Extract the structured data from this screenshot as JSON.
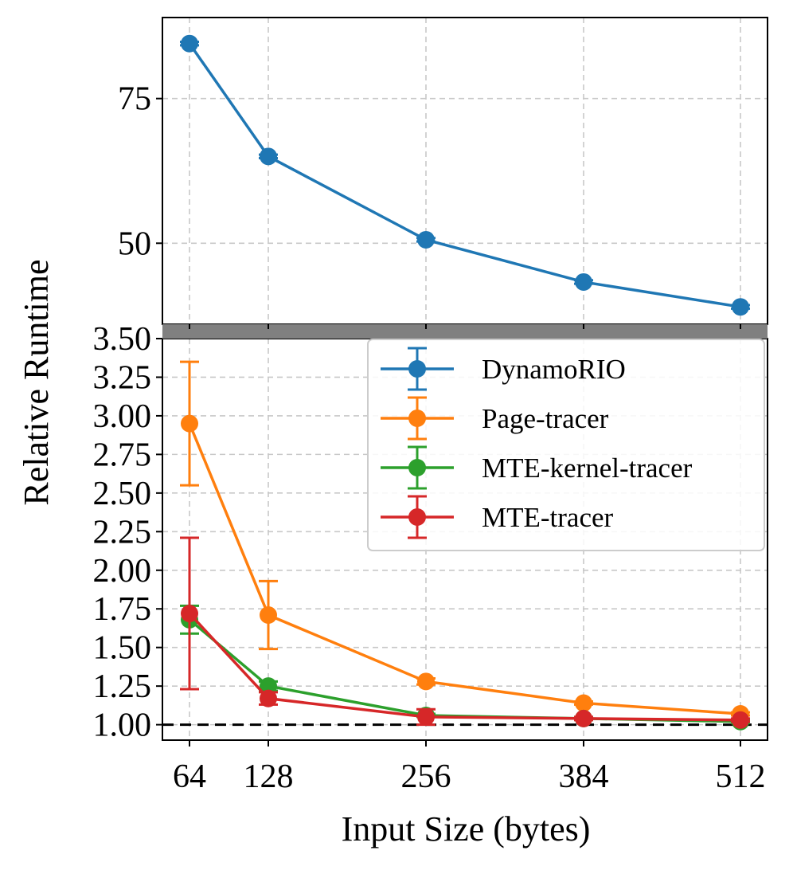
{
  "chart_data": {
    "type": "line",
    "xlabel": "Input Size (bytes)",
    "ylabel": "Relative Runtime",
    "x": [
      64,
      128,
      256,
      384,
      512
    ],
    "xticks": [
      "64",
      "128",
      "256",
      "384",
      "512"
    ],
    "top_panel": {
      "ylim": [
        36,
        89
      ],
      "yticks": [
        "50",
        "75"
      ]
    },
    "bottom_panel": {
      "ylim": [
        0.9,
        3.5
      ],
      "yticks": [
        "1.00",
        "1.25",
        "1.50",
        "1.75",
        "2.00",
        "2.25",
        "2.50",
        "2.75",
        "3.00",
        "3.25",
        "3.50"
      ],
      "reference_line": 1.0
    },
    "grid": true,
    "legend_position": "upper-right",
    "series": [
      {
        "name": "DynamoRIO",
        "color": "#1f77b4",
        "values": [
          84.5,
          65.0,
          50.6,
          43.3,
          39.0
        ],
        "errors": [
          0.3,
          0.3,
          0.3,
          0.3,
          0.3
        ]
      },
      {
        "name": "Page-tracer",
        "color": "#ff7f0e",
        "values": [
          2.95,
          1.71,
          1.28,
          1.14,
          1.07
        ],
        "errors": [
          0.4,
          0.22,
          0.02,
          0.01,
          0.01
        ]
      },
      {
        "name": "MTE-kernel-tracer",
        "color": "#2ca02c",
        "values": [
          1.68,
          1.25,
          1.06,
          1.04,
          1.02
        ],
        "errors": [
          0.09,
          0.03,
          0.01,
          0.01,
          0.01
        ]
      },
      {
        "name": "MTE-tracer",
        "color": "#d62728",
        "values": [
          1.72,
          1.17,
          1.05,
          1.04,
          1.03
        ],
        "errors": [
          0.49,
          0.04,
          0.05,
          0.01,
          0.01
        ]
      }
    ]
  }
}
